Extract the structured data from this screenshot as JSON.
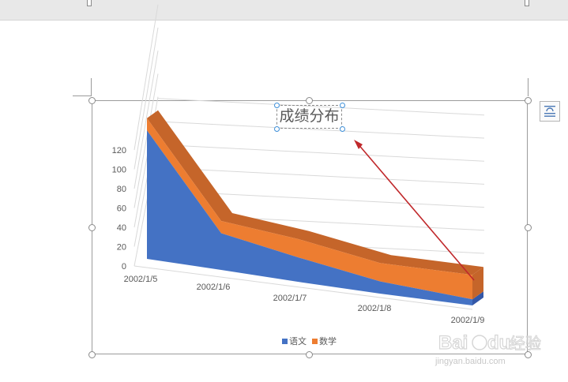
{
  "chart_data": {
    "type": "area",
    "title": "成绩分布",
    "x": [
      "2002/1/5",
      "2002/1/6",
      "2002/1/7",
      "2002/1/8",
      "2002/1/9"
    ],
    "series": [
      {
        "name": "语文",
        "values": [
          105,
          30,
          20,
          10,
          5
        ]
      },
      {
        "name": "数学",
        "values": [
          10,
          10,
          15,
          15,
          20
        ]
      }
    ],
    "stacked": true,
    "three_d": true,
    "ylim": [
      0,
      120
    ],
    "yticks": [
      "0",
      "20",
      "40",
      "60",
      "80",
      "100",
      "120"
    ],
    "legend_position": "bottom",
    "grid": true,
    "colors": {
      "语文": "#4472c4",
      "数学": "#ed7d31"
    }
  },
  "colors": {
    "series1_side": "#3458a8",
    "series2_top": "#c5652a",
    "selection_handle": "#3d8fd9",
    "annotation_arrow": "#c0282b"
  },
  "icons": {
    "layout_options": "layout-options-icon"
  },
  "watermark": {
    "logo": "Baidu经验",
    "url": "jingyan.baidu.com"
  }
}
